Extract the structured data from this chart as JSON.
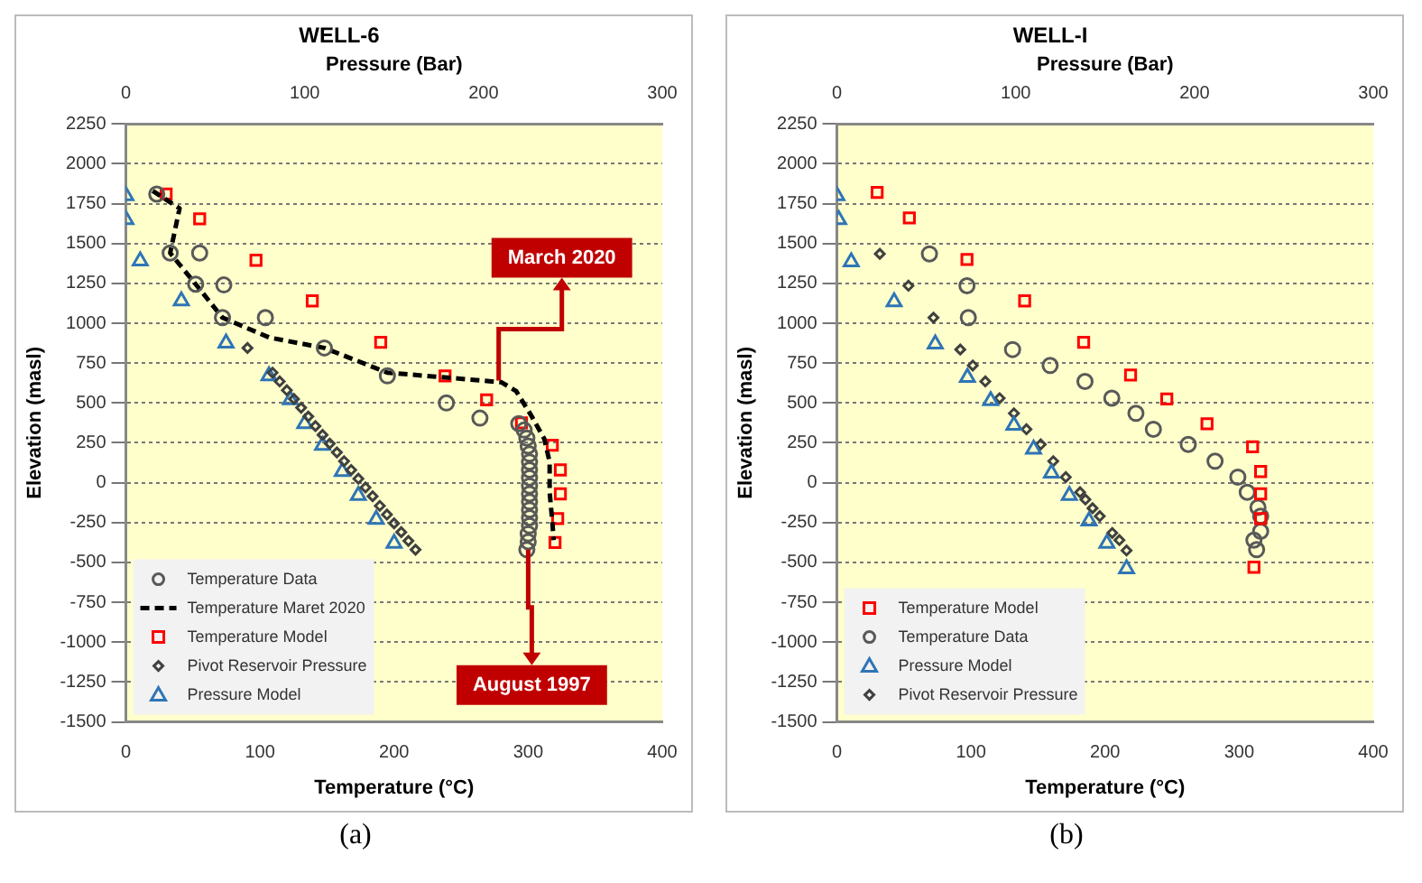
{
  "chart_data": [
    {
      "type": "scatter",
      "title": "WELL-6",
      "xlabel": "Temperature (°C)",
      "x2label": "Pressure (Bar)",
      "ylabel": "Elevation (masl)",
      "xlim": [
        0,
        400
      ],
      "xticks": [
        0,
        100,
        200,
        300,
        400
      ],
      "x2lim": [
        0,
        300
      ],
      "x2ticks": [
        0,
        100,
        200,
        300
      ],
      "ylim": [
        -1500,
        2250
      ],
      "yticks": [
        -1500,
        -1250,
        -1000,
        -750,
        -500,
        -250,
        0,
        250,
        500,
        750,
        1000,
        1250,
        1500,
        1750,
        2000,
        2250
      ],
      "grid": "y",
      "legend": "bottom left",
      "annotations": [
        {
          "text": "March 2020",
          "x": 278,
          "y": 640
        },
        {
          "text": "August 1997",
          "x": 300,
          "y": -420
        },
        "(a)"
      ],
      "series": [
        {
          "name": "Temperature Data",
          "color": "#595959",
          "marker": "circle",
          "x": [
            23,
            33,
            55,
            52,
            73,
            72,
            104,
            148,
            195,
            239,
            264,
            293,
            297,
            299,
            300,
            301,
            301,
            301,
            301,
            301,
            301,
            301,
            301,
            301,
            301,
            300,
            300,
            299
          ],
          "values": [
            1810,
            1440,
            1440,
            1245,
            1240,
            1035,
            1035,
            845,
            670,
            500,
            405,
            370,
            330,
            280,
            230,
            180,
            130,
            80,
            30,
            -20,
            -70,
            -120,
            -170,
            -220,
            -270,
            -320,
            -370,
            -420
          ]
        },
        {
          "name": "Temperature Maret 2020",
          "type": "line",
          "color": "#000000",
          "marker": "none",
          "line_style": "dashed",
          "x": [
            20,
            40,
            33,
            52,
            72,
            107,
            148,
            195,
            238,
            280,
            291,
            302,
            312,
            316,
            316,
            318,
            319
          ],
          "values": [
            1830,
            1720,
            1440,
            1245,
            1035,
            910,
            845,
            690,
            660,
            630,
            575,
            425,
            275,
            130,
            -60,
            -245,
            -360
          ]
        },
        {
          "name": "Temperature Model",
          "color": "#ff0000",
          "marker": "square",
          "x": [
            30,
            55,
            97,
            139,
            190,
            238,
            269,
            295,
            318,
            324,
            324,
            322,
            320
          ],
          "values": [
            1810,
            1655,
            1395,
            1140,
            880,
            670,
            520,
            375,
            235,
            80,
            -70,
            -225,
            -375
          ]
        },
        {
          "name": "Pivot Reservoir Pressure",
          "color": "#404040",
          "marker": "diamond",
          "axis": "x2",
          "x": [
            68,
            82,
            86,
            90,
            94,
            98,
            102,
            106,
            110,
            114,
            118,
            122,
            126,
            130,
            134,
            138,
            142,
            146,
            150,
            154,
            158,
            162
          ],
          "values": [
            845,
            690,
            635,
            580,
            525,
            470,
            415,
            355,
            300,
            245,
            190,
            135,
            80,
            25,
            -30,
            -85,
            -145,
            -200,
            -255,
            -310,
            -365,
            -420
          ]
        },
        {
          "name": "Pressure Model",
          "color": "#2e75b6",
          "marker": "triangle",
          "axis": "x2",
          "x": [
            0,
            0,
            8,
            31,
            56,
            80,
            92,
            100,
            110,
            121,
            130,
            140,
            150
          ],
          "values": [
            1800,
            1650,
            1390,
            1140,
            875,
            670,
            520,
            370,
            235,
            70,
            -80,
            -230,
            -380
          ]
        }
      ]
    },
    {
      "type": "scatter",
      "title": "WELL-I",
      "xlabel": "Temperature (°C)",
      "x2label": "Pressure (Bar)",
      "ylabel": "Elevation (masl)",
      "xlim": [
        0,
        400
      ],
      "xticks": [
        0,
        100,
        200,
        300,
        400
      ],
      "x2lim": [
        0,
        300
      ],
      "x2ticks": [
        0,
        100,
        200,
        300
      ],
      "ylim": [
        -1500,
        2250
      ],
      "yticks": [
        -1500,
        -1250,
        -1000,
        -750,
        -500,
        -250,
        0,
        250,
        500,
        750,
        1000,
        1250,
        1500,
        1750,
        2000,
        2250
      ],
      "grid": "y",
      "legend": "bottom left",
      "annotations": [
        "(b)"
      ],
      "series": [
        {
          "name": "Temperature Model",
          "color": "#ff0000",
          "marker": "square",
          "x": [
            30,
            54,
            97,
            140,
            184,
            219,
            246,
            276,
            310,
            316,
            316,
            316,
            311
          ],
          "values": [
            1820,
            1660,
            1400,
            1140,
            880,
            675,
            525,
            370,
            225,
            70,
            -70,
            -225,
            -530
          ]
        },
        {
          "name": "Temperature Data",
          "color": "#595959",
          "marker": "circle",
          "x": [
            69,
            97,
            98,
            131,
            159,
            185,
            205,
            223,
            236,
            262,
            282,
            299,
            306,
            314,
            316,
            316,
            311,
            313
          ],
          "values": [
            1435,
            1235,
            1035,
            835,
            735,
            635,
            530,
            435,
            335,
            240,
            135,
            35,
            -60,
            -155,
            -210,
            -305,
            -360,
            -420
          ]
        },
        {
          "name": "Pressure Model",
          "color": "#2e75b6",
          "marker": "triangle",
          "axis": "x2",
          "x": [
            0,
            1,
            8,
            32,
            55,
            73,
            86,
            99,
            110,
            120,
            130,
            141,
            151,
            162
          ],
          "values": [
            1800,
            1650,
            1385,
            1135,
            870,
            660,
            515,
            360,
            210,
            60,
            -80,
            -240,
            -380,
            -540
          ]
        },
        {
          "name": "Pivot Reservoir Pressure",
          "color": "#404040",
          "marker": "diamond",
          "axis": "x2",
          "x": [
            24,
            40,
            54,
            69,
            76,
            83,
            91,
            99,
            106,
            114,
            121,
            128,
            136,
            139,
            143,
            147,
            154,
            158,
            162
          ],
          "values": [
            1435,
            1235,
            1035,
            835,
            735,
            635,
            530,
            435,
            335,
            240,
            135,
            35,
            -60,
            -105,
            -160,
            -210,
            -315,
            -360,
            -425
          ]
        }
      ]
    }
  ]
}
